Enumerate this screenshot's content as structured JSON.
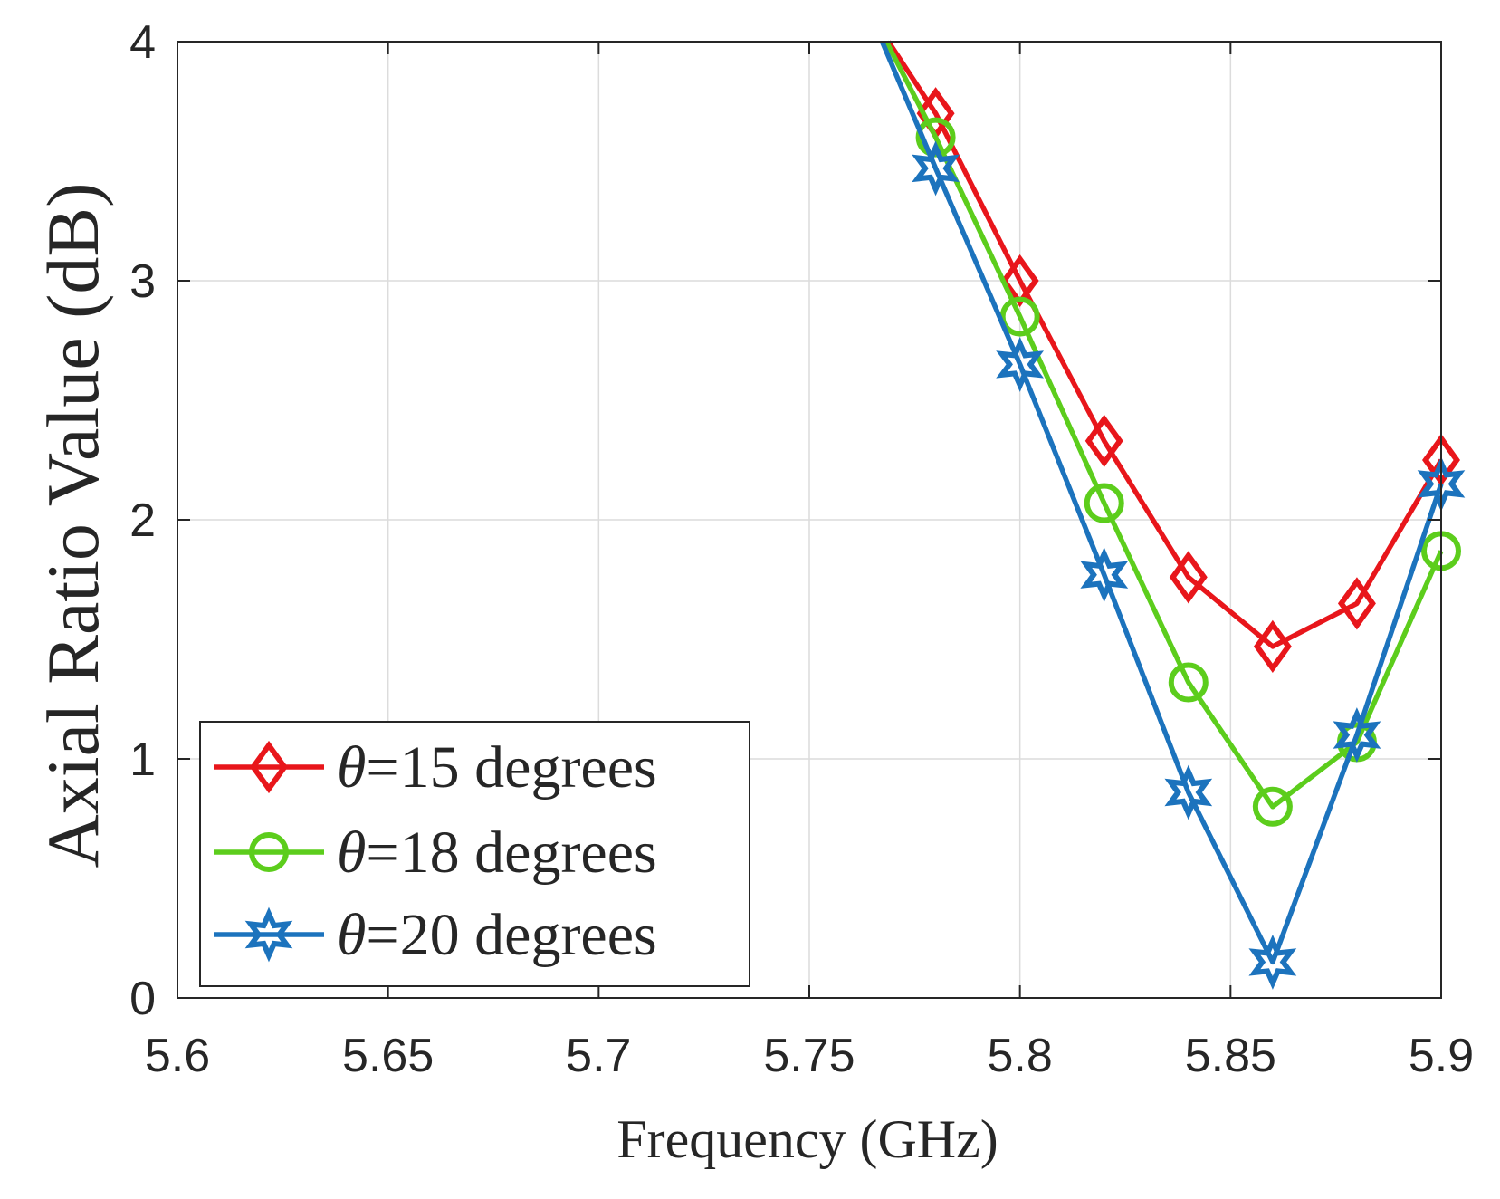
{
  "chart_data": {
    "type": "line",
    "title": "",
    "xlabel": "Frequency (GHz)",
    "ylabel": "Axial Ratio Value (dB)",
    "xlim": [
      5.6,
      5.9
    ],
    "ylim": [
      0,
      4
    ],
    "xticks": [
      5.6,
      5.65,
      5.7,
      5.75,
      5.8,
      5.85,
      5.9
    ],
    "xtick_labels": [
      "5.6",
      "5.65",
      "5.7",
      "5.75",
      "5.8",
      "5.85",
      "5.9"
    ],
    "yticks": [
      0,
      1,
      2,
      3,
      4
    ],
    "ytick_labels": [
      "0",
      "1",
      "2",
      "3",
      "4"
    ],
    "grid": true,
    "legend_position": "bottom-left",
    "series": [
      {
        "name": "θ=15 degrees",
        "legend_symbol": "θ",
        "legend_text": "=15 degrees",
        "color": "#e8161b",
        "marker": "diamond",
        "x": [
          5.7688,
          5.78,
          5.8,
          5.82,
          5.84,
          5.86,
          5.88,
          5.9
        ],
        "y": [
          4.0,
          3.7,
          3.0,
          2.33,
          1.76,
          1.47,
          1.65,
          2.25
        ]
      },
      {
        "name": "θ=18 degrees",
        "legend_symbol": "θ",
        "legend_text": "=18 degrees",
        "color": "#5ccd1c",
        "marker": "circle",
        "x": [
          5.7683,
          5.78,
          5.8,
          5.82,
          5.84,
          5.86,
          5.88,
          5.9
        ],
        "y": [
          4.0,
          3.6,
          2.85,
          2.07,
          1.32,
          0.8,
          1.07,
          1.87
        ]
      },
      {
        "name": "θ=20 degrees",
        "legend_symbol": "θ",
        "legend_text": "=20 degrees",
        "color": "#1c73bd",
        "marker": "star",
        "x": [
          5.7673,
          5.78,
          5.8,
          5.82,
          5.84,
          5.86,
          5.88,
          5.9
        ],
        "y": [
          4.0,
          3.47,
          2.65,
          1.77,
          0.86,
          0.15,
          1.1,
          2.15
        ]
      }
    ]
  }
}
